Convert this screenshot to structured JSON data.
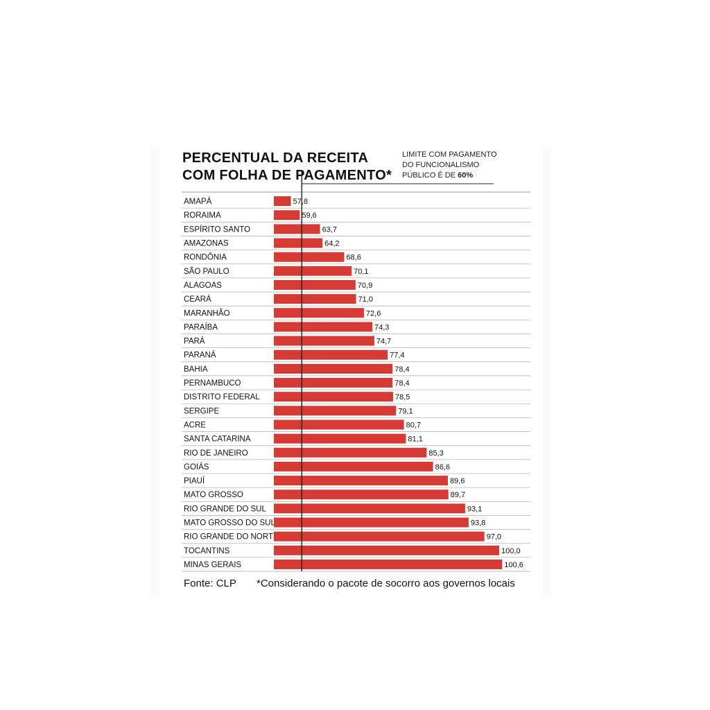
{
  "chart_data": {
    "type": "bar",
    "orientation": "horizontal",
    "title_line1": "PERCENTUAL DA RECEITA",
    "title_line2": "COM FOLHA DE PAGAMENTO*",
    "reference_line": {
      "value": 60,
      "label_line1": "LIMITE COM PAGAMENTO",
      "label_line2": "DO FUNCIONALISMO",
      "label_line3_prefix": "PÚBLICO É DE ",
      "label_line3_value": "60%"
    },
    "categories": [
      "AMAPÁ",
      "RORAIMA",
      "ESPÍRITO SANTO",
      "AMAZONAS",
      "RONDÔNIA",
      "SÃO PAULO",
      "ALAGOAS",
      "CEARÁ",
      "MARANHÃO",
      "PARAÍBA",
      "PARÁ",
      "PARANÁ",
      "BAHIA",
      "PERNAMBUCO",
      "DISTRITO FEDERAL",
      "SERGIPE",
      "ACRE",
      "SANTA CATARINA",
      "RIO DE JANEIRO",
      "GOIÁS",
      "PIAUÍ",
      "MATO GROSSO",
      "RIO GRANDE DO SUL",
      "MATO GROSSO DO SUL",
      "RIO GRANDE DO NORTE",
      "TOCANTINS",
      "MINAS GERAIS"
    ],
    "values": [
      57.8,
      59.6,
      63.7,
      64.2,
      68.6,
      70.1,
      70.9,
      71.0,
      72.6,
      74.3,
      74.7,
      77.4,
      78.4,
      78.4,
      78.5,
      79.1,
      80.7,
      81.1,
      85.3,
      86.6,
      89.6,
      89.7,
      93.1,
      93.8,
      97.0,
      100.0,
      100.6
    ],
    "value_labels": [
      "57,8",
      "59,6",
      "63,7",
      "64,2",
      "68,6",
      "70,1",
      "70,9",
      "71,0",
      "72,6",
      "74,3",
      "74,7",
      "77,4",
      "78,4",
      "78,4",
      "78,5",
      "79,1",
      "80,7",
      "81,1",
      "85,3",
      "86,6",
      "89,6",
      "89,7",
      "93,1",
      "93,8",
      "97,0",
      "100,0",
      "100,6"
    ],
    "grid": false,
    "legend": "none",
    "bar_color": "#d63a34"
  },
  "footer": {
    "source": "Fonte: CLP",
    "note": "*Considerando o pacote de socorro aos governos locais"
  }
}
